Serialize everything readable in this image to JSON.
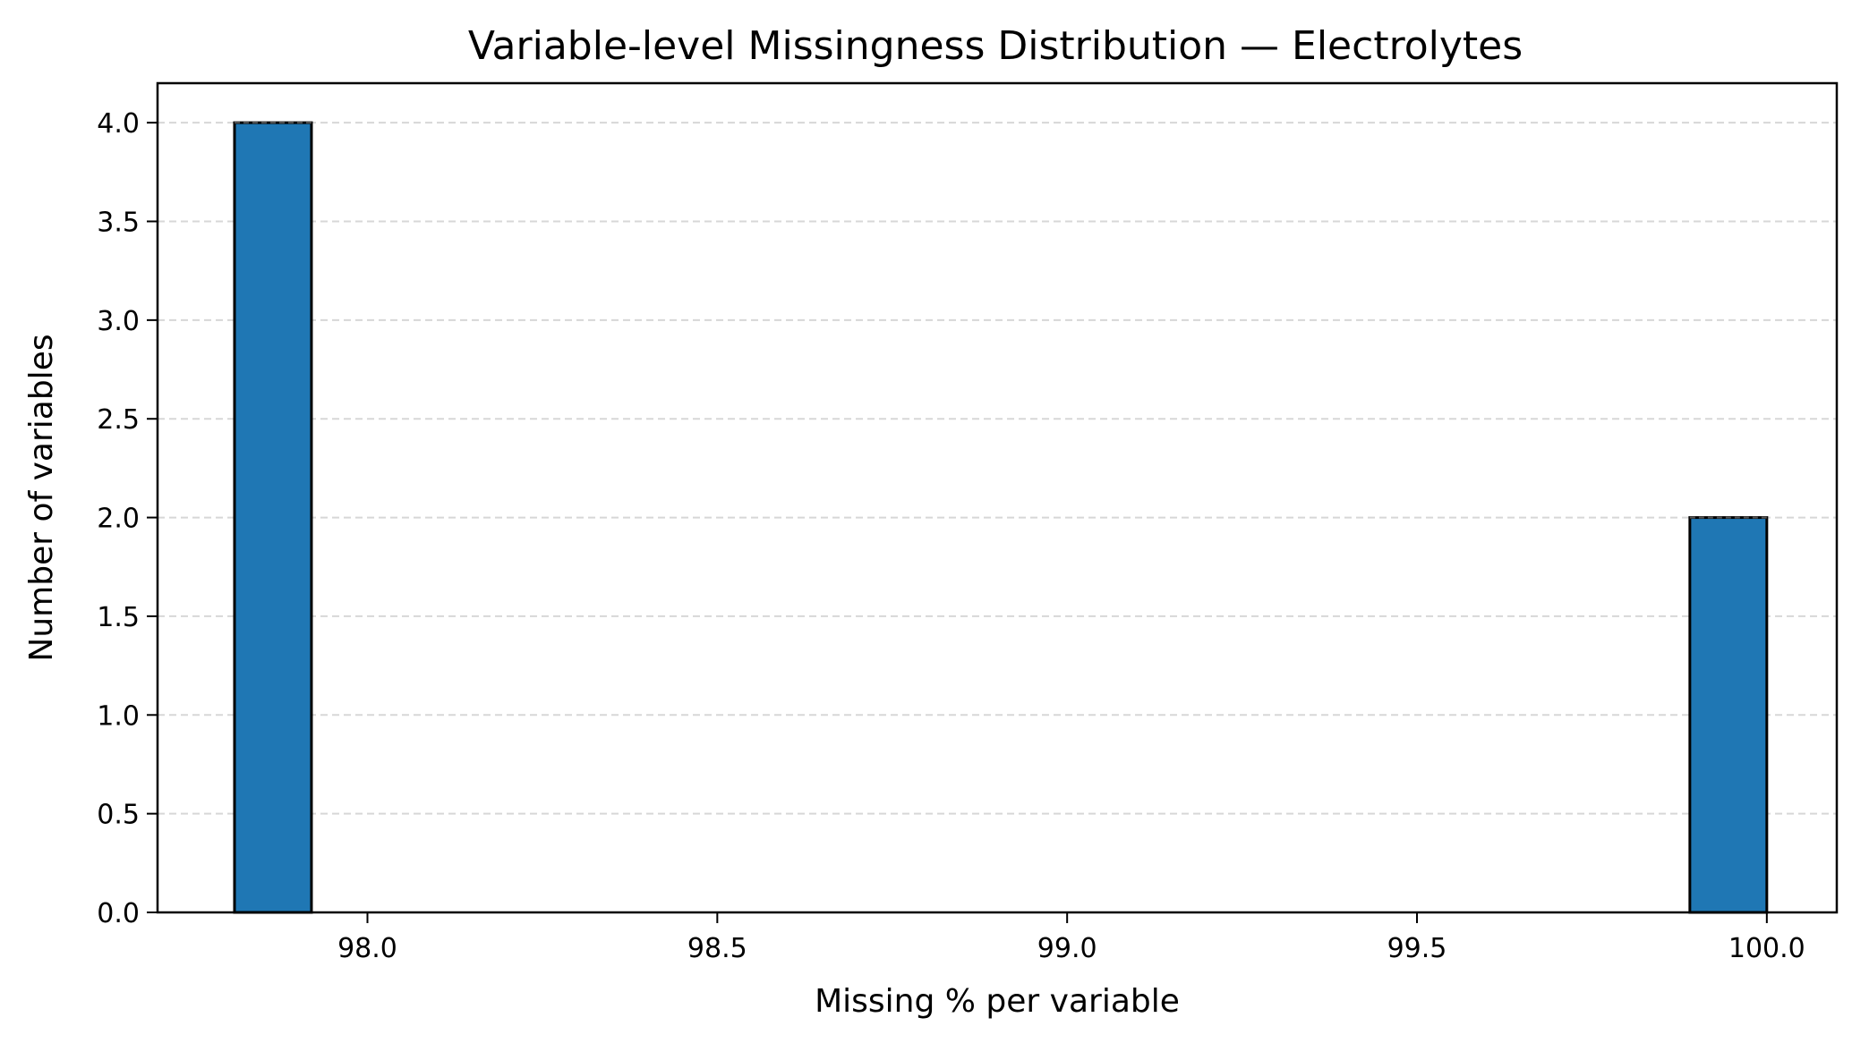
{
  "chart_data": {
    "type": "bar",
    "title": "Variable-level Missingness Distribution — Electrolytes",
    "xlabel": "Missing % per variable",
    "ylabel": "Number of variables",
    "xlim": [
      97.7,
      100.1
    ],
    "ylim": [
      0,
      4.2
    ],
    "xticks": [
      98.0,
      98.5,
      99.0,
      99.5,
      100.0
    ],
    "xtick_labels": [
      "98.0",
      "98.5",
      "99.0",
      "99.5",
      "100.0"
    ],
    "yticks": [
      0,
      0.5,
      1,
      1.5,
      2,
      2.5,
      3,
      3.5,
      4
    ],
    "ytick_labels": [
      "0.0",
      "0.5",
      "1.0",
      "1.5",
      "2.0",
      "2.5",
      "3.0",
      "3.5",
      "4.0"
    ],
    "bins": [
      {
        "x0": 97.81,
        "x1": 97.92,
        "value": 4
      },
      {
        "x0": 99.89,
        "x1": 100.0,
        "value": 2
      }
    ],
    "grid": "y",
    "bar_color": "#1f77b4"
  }
}
